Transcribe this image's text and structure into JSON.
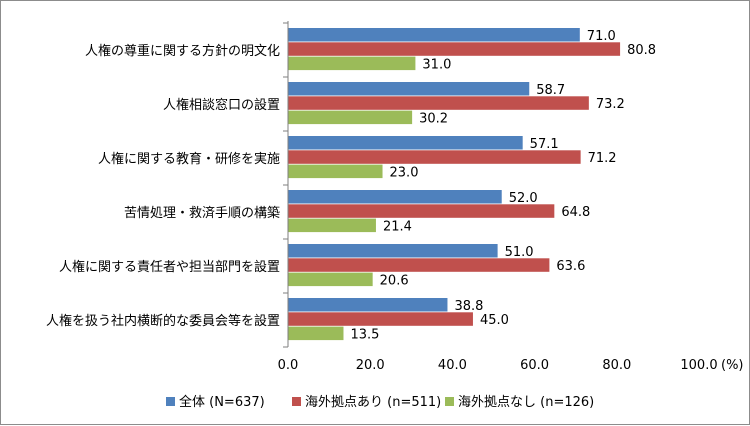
{
  "chart_data": {
    "type": "bar",
    "orientation": "horizontal",
    "categories": [
      "人権の尊重に関する方針の明文化",
      "人権相談窓口の設置",
      "人権に関する教育・研修を実施",
      "苦情処理・救済手順の構築",
      "人権に関する責任者や担当部門を設置",
      "人権を扱う社内横断的な委員会等を設置"
    ],
    "series": [
      {
        "name": "全体 (N=637)",
        "color": "#4f81bd",
        "values": [
          71.0,
          58.7,
          57.1,
          52.0,
          51.0,
          38.8
        ]
      },
      {
        "name": "海外拠点あり (n=511)",
        "color": "#c0504d",
        "values": [
          80.8,
          73.2,
          71.2,
          64.8,
          63.6,
          45.0
        ]
      },
      {
        "name": "海外拠点なし (n=126)",
        "color": "#9bbb59",
        "values": [
          31.0,
          30.2,
          23.0,
          21.4,
          20.6,
          13.5
        ]
      }
    ],
    "xlim": [
      0,
      100
    ],
    "xticks": [
      "0.0",
      "20.0",
      "40.0",
      "60.0",
      "80.0",
      "100.0"
    ],
    "xunit": "(%)",
    "legend_position": "bottom",
    "grid": false
  }
}
